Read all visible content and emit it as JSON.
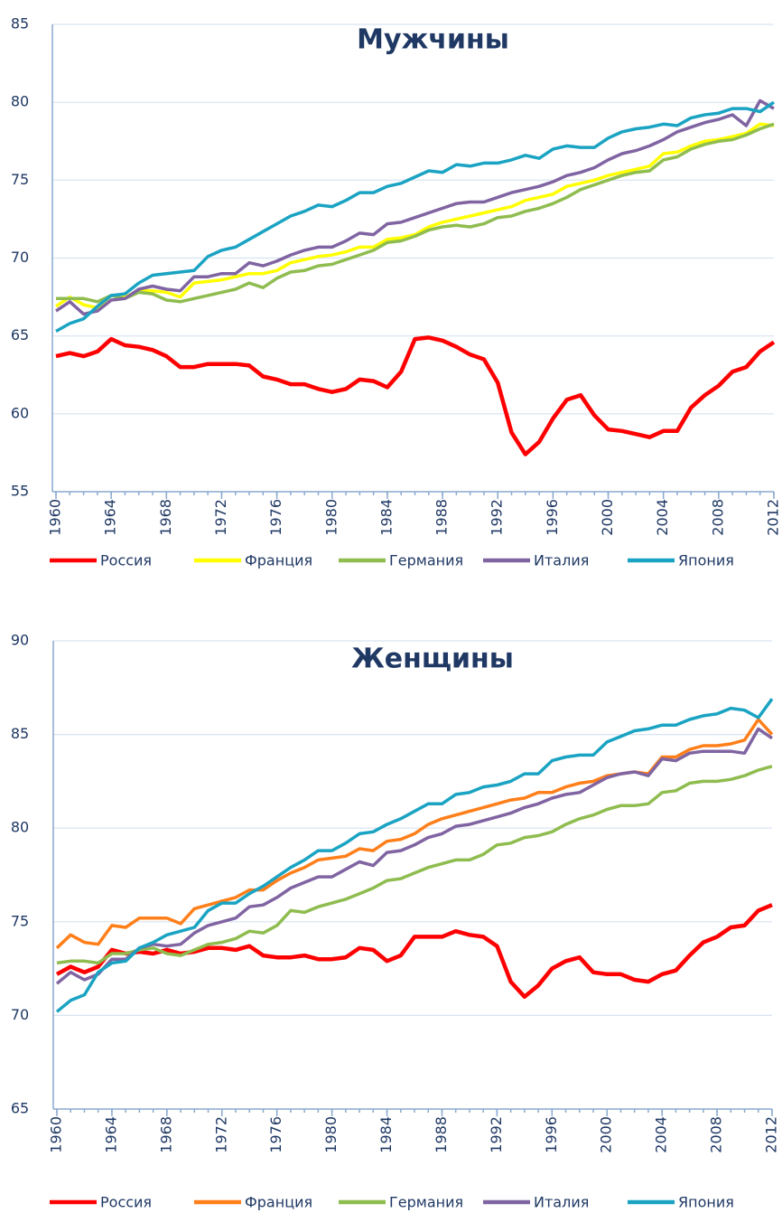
{
  "chart_data": [
    {
      "type": "line",
      "title": "Мужчины",
      "legend": "bottom",
      "grid": true,
      "x": [
        1960,
        1961,
        1962,
        1963,
        1964,
        1965,
        1966,
        1967,
        1968,
        1969,
        1970,
        1971,
        1972,
        1973,
        1974,
        1975,
        1976,
        1977,
        1978,
        1979,
        1980,
        1981,
        1982,
        1983,
        1984,
        1985,
        1986,
        1987,
        1988,
        1989,
        1990,
        1991,
        1992,
        1993,
        1994,
        1995,
        1996,
        1997,
        1998,
        1999,
        2000,
        2001,
        2002,
        2003,
        2004,
        2005,
        2006,
        2007,
        2008,
        2009,
        2010,
        2011,
        2012
      ],
      "xlim": [
        1960,
        2012
      ],
      "xticks": [
        1960,
        1964,
        1968,
        1972,
        1976,
        1980,
        1984,
        1988,
        1992,
        1996,
        2000,
        2004,
        2008,
        2012
      ],
      "ylim": [
        55,
        85
      ],
      "yticks": [
        55,
        60,
        65,
        70,
        75,
        80,
        85
      ],
      "series": [
        {
          "name": "Россия",
          "color": "#ff0000",
          "values": [
            63.7,
            63.9,
            63.7,
            64.0,
            64.8,
            64.4,
            64.3,
            64.1,
            63.7,
            63.0,
            63.0,
            63.2,
            63.2,
            63.2,
            63.1,
            62.4,
            62.2,
            61.9,
            61.9,
            61.6,
            61.4,
            61.6,
            62.2,
            62.1,
            61.7,
            62.7,
            64.8,
            64.9,
            64.7,
            64.3,
            63.8,
            63.5,
            62.0,
            58.8,
            57.4,
            58.2,
            59.7,
            60.9,
            61.2,
            59.9,
            59.0,
            58.9,
            58.7,
            58.5,
            58.9,
            58.9,
            60.4,
            61.2,
            61.8,
            62.7,
            63.0,
            64.0,
            64.6
          ]
        },
        {
          "name": "Франция",
          "color": "#ffff00",
          "values": [
            66.9,
            67.5,
            67.0,
            66.8,
            67.6,
            67.5,
            67.9,
            67.9,
            67.8,
            67.5,
            68.4,
            68.5,
            68.6,
            68.8,
            69.0,
            69.0,
            69.2,
            69.7,
            69.9,
            70.1,
            70.2,
            70.4,
            70.7,
            70.7,
            71.2,
            71.3,
            71.5,
            72.0,
            72.3,
            72.5,
            72.7,
            72.9,
            73.1,
            73.3,
            73.7,
            73.9,
            74.1,
            74.6,
            74.8,
            75.0,
            75.3,
            75.5,
            75.7,
            75.9,
            76.7,
            76.8,
            77.2,
            77.5,
            77.6,
            77.8,
            78.0,
            78.6,
            78.5
          ]
        },
        {
          "name": "Германия",
          "color": "#8fbc4f",
          "values": [
            67.4,
            67.4,
            67.4,
            67.2,
            67.6,
            67.4,
            67.8,
            67.7,
            67.3,
            67.2,
            67.4,
            67.6,
            67.8,
            68.0,
            68.4,
            68.1,
            68.7,
            69.1,
            69.2,
            69.5,
            69.6,
            69.9,
            70.2,
            70.5,
            71.0,
            71.1,
            71.4,
            71.8,
            72.0,
            72.1,
            72.0,
            72.2,
            72.6,
            72.7,
            73.0,
            73.2,
            73.5,
            73.9,
            74.4,
            74.7,
            75.0,
            75.3,
            75.5,
            75.6,
            76.3,
            76.5,
            77.0,
            77.3,
            77.5,
            77.6,
            77.9,
            78.3,
            78.6
          ]
        },
        {
          "name": "Италия",
          "color": "#8064a2",
          "values": [
            66.6,
            67.2,
            66.4,
            66.6,
            67.3,
            67.4,
            68.0,
            68.2,
            68.0,
            67.9,
            68.8,
            68.8,
            69.0,
            69.0,
            69.7,
            69.5,
            69.8,
            70.2,
            70.5,
            70.7,
            70.7,
            71.1,
            71.6,
            71.5,
            72.2,
            72.3,
            72.6,
            72.9,
            73.2,
            73.5,
            73.6,
            73.6,
            73.9,
            74.2,
            74.4,
            74.6,
            74.9,
            75.3,
            75.5,
            75.8,
            76.3,
            76.7,
            76.9,
            77.2,
            77.6,
            78.1,
            78.4,
            78.7,
            78.9,
            79.2,
            78.5,
            80.1,
            79.6
          ]
        },
        {
          "name": "Япония",
          "color": "#1aa3c2",
          "values": [
            65.3,
            65.8,
            66.1,
            66.9,
            67.6,
            67.7,
            68.4,
            68.9,
            69.0,
            69.1,
            69.2,
            70.1,
            70.5,
            70.7,
            71.2,
            71.7,
            72.2,
            72.7,
            73.0,
            73.4,
            73.3,
            73.7,
            74.2,
            74.2,
            74.6,
            74.8,
            75.2,
            75.6,
            75.5,
            76.0,
            75.9,
            76.1,
            76.1,
            76.3,
            76.6,
            76.4,
            77.0,
            77.2,
            77.1,
            77.1,
            77.7,
            78.1,
            78.3,
            78.4,
            78.6,
            78.5,
            79.0,
            79.2,
            79.3,
            79.6,
            79.6,
            79.4,
            80.0
          ]
        }
      ]
    },
    {
      "type": "line",
      "title": "Женщины",
      "legend": "bottom",
      "grid": true,
      "x": [
        1960,
        1961,
        1962,
        1963,
        1964,
        1965,
        1966,
        1967,
        1968,
        1969,
        1970,
        1971,
        1972,
        1973,
        1974,
        1975,
        1976,
        1977,
        1978,
        1979,
        1980,
        1981,
        1982,
        1983,
        1984,
        1985,
        1986,
        1987,
        1988,
        1989,
        1990,
        1991,
        1992,
        1993,
        1994,
        1995,
        1996,
        1997,
        1998,
        1999,
        2000,
        2001,
        2002,
        2003,
        2004,
        2005,
        2006,
        2007,
        2008,
        2009,
        2010,
        2011,
        2012
      ],
      "xlim": [
        1960,
        2012
      ],
      "xticks": [
        1960,
        1964,
        1968,
        1972,
        1976,
        1980,
        1984,
        1988,
        1992,
        1996,
        2000,
        2004,
        2008,
        2012
      ],
      "ylim": [
        65,
        90
      ],
      "yticks": [
        65,
        70,
        75,
        80,
        85,
        90
      ],
      "series": [
        {
          "name": "Россия",
          "color": "#ff0000",
          "values": [
            72.2,
            72.6,
            72.3,
            72.6,
            73.5,
            73.3,
            73.4,
            73.3,
            73.5,
            73.3,
            73.4,
            73.6,
            73.6,
            73.5,
            73.7,
            73.2,
            73.1,
            73.1,
            73.2,
            73.0,
            73.0,
            73.1,
            73.6,
            73.5,
            72.9,
            73.2,
            74.2,
            74.2,
            74.2,
            74.5,
            74.3,
            74.2,
            73.7,
            71.8,
            71.0,
            71.6,
            72.5,
            72.9,
            73.1,
            72.3,
            72.2,
            72.2,
            71.9,
            71.8,
            72.2,
            72.4,
            73.2,
            73.9,
            74.2,
            74.7,
            74.8,
            75.6,
            75.9
          ]
        },
        {
          "name": "Франция",
          "color": "#ff7f1a",
          "values": [
            73.6,
            74.3,
            73.9,
            73.8,
            74.8,
            74.7,
            75.2,
            75.2,
            75.2,
            74.9,
            75.7,
            75.9,
            76.1,
            76.3,
            76.7,
            76.7,
            77.2,
            77.6,
            77.9,
            78.3,
            78.4,
            78.5,
            78.9,
            78.8,
            79.3,
            79.4,
            79.7,
            80.2,
            80.5,
            80.7,
            80.9,
            81.1,
            81.3,
            81.5,
            81.6,
            81.9,
            81.9,
            82.2,
            82.4,
            82.5,
            82.8,
            82.9,
            83.0,
            82.9,
            83.8,
            83.8,
            84.2,
            84.4,
            84.4,
            84.5,
            84.7,
            85.8,
            85.0
          ]
        },
        {
          "name": "Германия",
          "color": "#8fbc4f",
          "values": [
            72.8,
            72.9,
            72.9,
            72.8,
            73.3,
            73.3,
            73.5,
            73.6,
            73.3,
            73.2,
            73.5,
            73.8,
            73.9,
            74.1,
            74.5,
            74.4,
            74.8,
            75.6,
            75.5,
            75.8,
            76.0,
            76.2,
            76.5,
            76.8,
            77.2,
            77.3,
            77.6,
            77.9,
            78.1,
            78.3,
            78.3,
            78.6,
            79.1,
            79.2,
            79.5,
            79.6,
            79.8,
            80.2,
            80.5,
            80.7,
            81.0,
            81.2,
            81.2,
            81.3,
            81.9,
            82.0,
            82.4,
            82.5,
            82.5,
            82.6,
            82.8,
            83.1,
            83.3
          ]
        },
        {
          "name": "Италия",
          "color": "#8064a2",
          "values": [
            71.7,
            72.3,
            71.9,
            72.2,
            73.0,
            73.0,
            73.6,
            73.8,
            73.7,
            73.8,
            74.4,
            74.8,
            75.0,
            75.2,
            75.8,
            75.9,
            76.3,
            76.8,
            77.1,
            77.4,
            77.4,
            77.8,
            78.2,
            78.0,
            78.7,
            78.8,
            79.1,
            79.5,
            79.7,
            80.1,
            80.2,
            80.4,
            80.6,
            80.8,
            81.1,
            81.3,
            81.6,
            81.8,
            81.9,
            82.3,
            82.7,
            82.9,
            83.0,
            82.8,
            83.7,
            83.6,
            84.0,
            84.1,
            84.1,
            84.1,
            84.0,
            85.3,
            84.8
          ]
        },
        {
          "name": "Япония",
          "color": "#1aa3c2",
          "values": [
            70.2,
            70.8,
            71.1,
            72.3,
            72.8,
            72.9,
            73.6,
            73.9,
            74.3,
            74.5,
            74.7,
            75.6,
            76.0,
            76.0,
            76.5,
            76.9,
            77.4,
            77.9,
            78.3,
            78.8,
            78.8,
            79.2,
            79.7,
            79.8,
            80.2,
            80.5,
            80.9,
            81.3,
            81.3,
            81.8,
            81.9,
            82.2,
            82.3,
            82.5,
            82.9,
            82.9,
            83.6,
            83.8,
            83.9,
            83.9,
            84.6,
            84.9,
            85.2,
            85.3,
            85.5,
            85.5,
            85.8,
            86.0,
            86.1,
            86.4,
            86.3,
            85.9,
            86.9
          ]
        }
      ]
    }
  ]
}
